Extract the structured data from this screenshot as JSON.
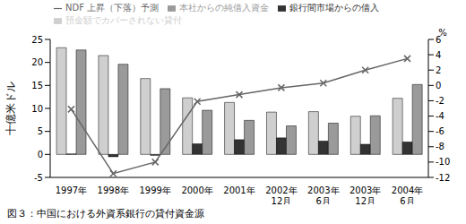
{
  "chart_data": {
    "type": "bar",
    "title": "図３：中国における外資系銀行の貸付資金源",
    "y_label": "十億米ドル",
    "y2_label": "%",
    "categories": [
      "1997年",
      "1998年",
      "1999年",
      "2000年",
      "2001年",
      "2002年12月",
      "2003年6月",
      "2003年12月",
      "2004年6月"
    ],
    "ylim": [
      -5,
      25
    ],
    "yticks": [
      -5,
      0,
      5,
      10,
      15,
      20,
      25
    ],
    "y2lim": [
      -12,
      6
    ],
    "y2ticks": [
      -12,
      -10,
      -8,
      -6,
      -4,
      -2,
      0,
      2,
      4,
      6
    ],
    "grid": false,
    "legend": "top",
    "series": [
      {
        "name": "預金額でカバーされない貸付",
        "color": "#cfcfcf",
        "values": [
          23.2,
          21.5,
          16.5,
          12.3,
          11.3,
          9.2,
          9.3,
          8.3,
          12.2
        ]
      },
      {
        "name": "銀行間市場からの借入",
        "color": "#333333",
        "values": [
          0.1,
          -0.5,
          -0.2,
          2.3,
          3.2,
          3.6,
          2.9,
          2.2,
          2.7
        ]
      },
      {
        "name": "本社からの純借入資金",
        "color": "#9a9a9a",
        "values": [
          22.7,
          19.6,
          14.3,
          9.6,
          7.4,
          6.2,
          6.8,
          8.4,
          15.2
        ]
      },
      {
        "name": "NDF 上昇（下落）予測",
        "color": "#666666",
        "type": "line",
        "axis": "y2",
        "marker": "x",
        "values": [
          -3.1,
          -11.5,
          -10,
          -2.1,
          -1.2,
          -0.3,
          0.3,
          2,
          3.5
        ]
      }
    ]
  }
}
